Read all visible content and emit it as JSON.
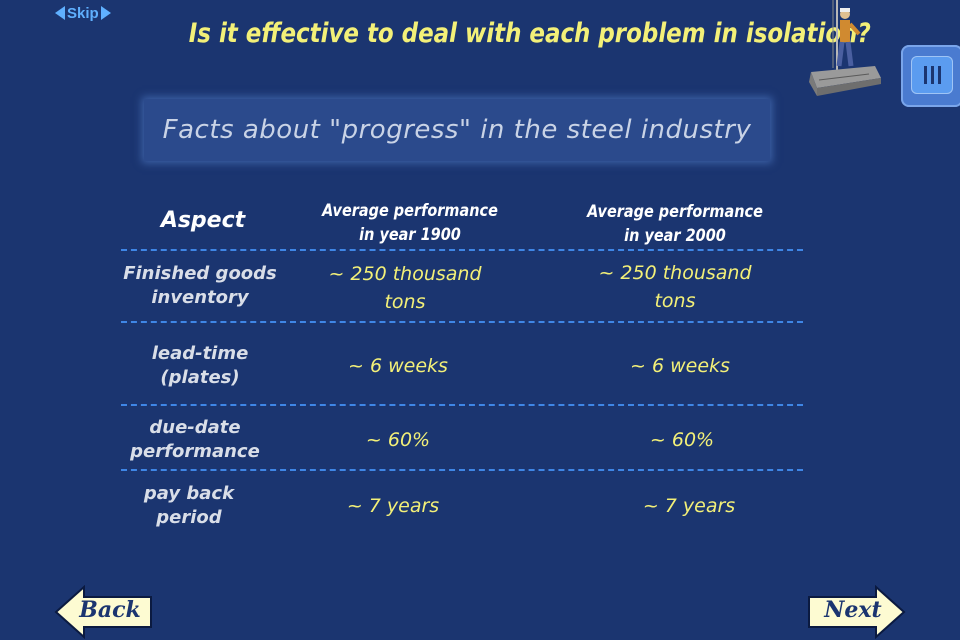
{
  "skip_label": "Skip",
  "headline": "Is it effective to deal with each problem in isolation?",
  "subtitle": "Facts about \"progress\" in the steel industry",
  "table": {
    "headers": {
      "aspect": "Aspect",
      "col1": [
        "Average performance",
        "in year 1900"
      ],
      "col2": [
        "Average performance",
        "in year 2000"
      ]
    },
    "rows": [
      {
        "aspect": [
          "Finished goods",
          "inventory"
        ],
        "v1900": [
          "~ 250 thousand",
          "tons"
        ],
        "v2000": [
          "~ 250 thousand",
          "tons"
        ]
      },
      {
        "aspect": [
          "lead-time",
          "(plates)"
        ],
        "v1900": [
          "~ 6 weeks"
        ],
        "v2000": [
          "~ 6 weeks"
        ]
      },
      {
        "aspect": [
          "due-date",
          "performance"
        ],
        "v1900": [
          "~ 60%"
        ],
        "v2000": [
          "~ 60%"
        ]
      },
      {
        "aspect": [
          "pay back",
          "period"
        ],
        "v1900": [
          "~ 7 years"
        ],
        "v2000": [
          "~ 7 years"
        ]
      }
    ]
  },
  "nav": {
    "back_label": "Back",
    "next_label": "Next"
  },
  "icons": {
    "menu": "menu-icon",
    "illustration": "steel-worker-on-beam"
  },
  "colors": {
    "background": "#1b3570",
    "headline": "#f3f078",
    "divider": "#3f86e6",
    "skip": "#5fb0ff",
    "nav_button": "#fdfbd2"
  }
}
